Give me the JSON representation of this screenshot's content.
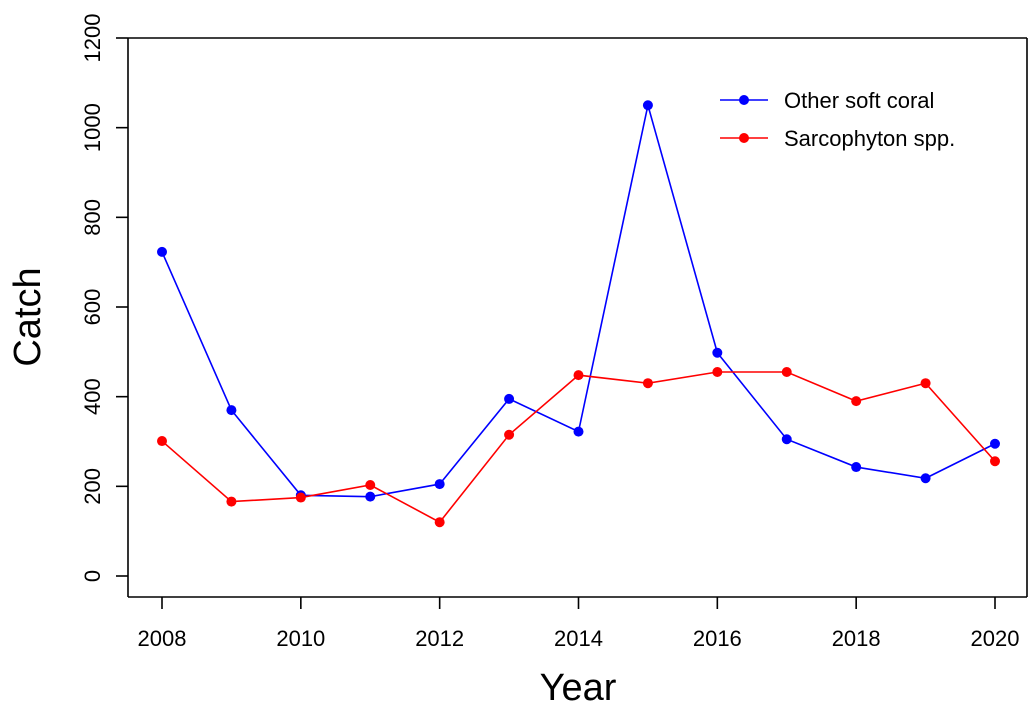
{
  "chart_data": {
    "type": "line",
    "title": "",
    "xlabel": "Year",
    "ylabel": "Catch",
    "x": [
      2008,
      2009,
      2010,
      2011,
      2012,
      2013,
      2014,
      2015,
      2016,
      2017,
      2018,
      2019,
      2020
    ],
    "xlim": [
      2008,
      2020
    ],
    "ylim": [
      0,
      1200
    ],
    "xticks": [
      2008,
      2010,
      2012,
      2014,
      2016,
      2018,
      2020
    ],
    "yticks": [
      0,
      200,
      400,
      600,
      800,
      1000,
      1200
    ],
    "grid": false,
    "legend": {
      "position": "top-right"
    },
    "series": [
      {
        "name": "Other soft coral",
        "color": "#0000ff",
        "values": [
          723,
          370,
          180,
          177,
          205,
          395,
          322,
          1050,
          498,
          305,
          243,
          218,
          295
        ]
      },
      {
        "name": "Sarcophyton spp.",
        "color": "#ff0000",
        "values": [
          301,
          166,
          175,
          203,
          120,
          315,
          448,
          430,
          455,
          455,
          390,
          430,
          256
        ]
      }
    ]
  }
}
